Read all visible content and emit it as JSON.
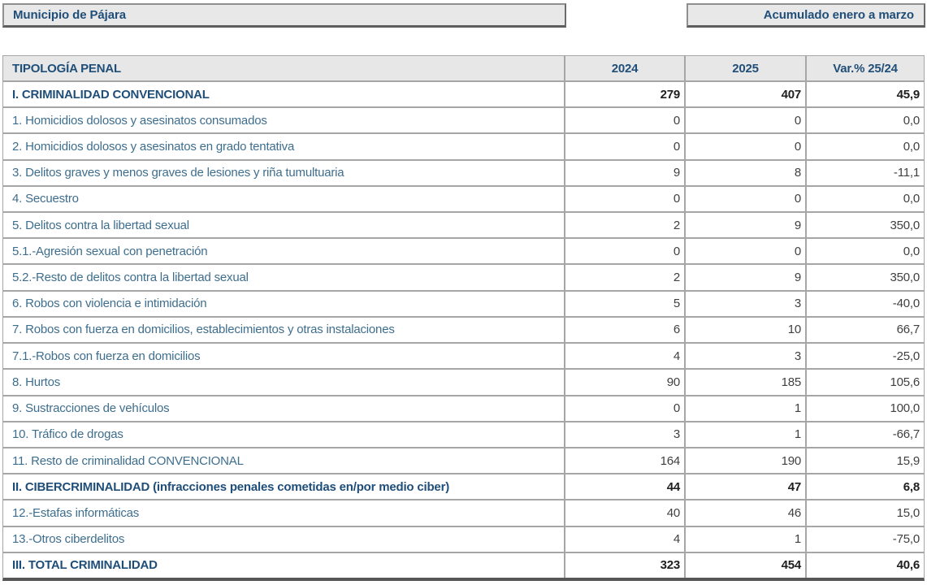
{
  "header": {
    "municipality_label": "Municipio de Pájara",
    "period_label": "Acumulado enero a marzo"
  },
  "colors": {
    "accent_navy": "#1f4e79",
    "label_steel_blue": "#3e6e8e",
    "grid_gray": "#a6a6a6",
    "header_bg": "#e8e7e7",
    "box_bg": "#e9e8e8"
  },
  "table": {
    "columns": [
      "TIPOLOGÍA PENAL",
      "2024",
      "2025",
      "Var.% 25/24"
    ],
    "rows": [
      {
        "label": "I. CRIMINALIDAD CONVENCIONAL",
        "y2024": "279",
        "y2025": "407",
        "var": "45,9"
      },
      {
        "label": "1. Homicidios dolosos y asesinatos consumados",
        "y2024": "0",
        "y2025": "0",
        "var": "0,0"
      },
      {
        "label": "2. Homicidios dolosos y asesinatos en grado tentativa",
        "y2024": "0",
        "y2025": "0",
        "var": "0,0"
      },
      {
        "label": "3. Delitos graves y menos graves de lesiones y riña tumultuaria",
        "y2024": "9",
        "y2025": "8",
        "var": "-11,1"
      },
      {
        "label": "4. Secuestro",
        "y2024": "0",
        "y2025": "0",
        "var": "0,0"
      },
      {
        "label": "5. Delitos contra la libertad sexual",
        "y2024": "2",
        "y2025": "9",
        "var": "350,0"
      },
      {
        "label": "5.1.-Agresión sexual con penetración",
        "y2024": "0",
        "y2025": "0",
        "var": "0,0"
      },
      {
        "label": "5.2.-Resto de delitos contra la libertad sexual",
        "y2024": "2",
        "y2025": "9",
        "var": "350,0"
      },
      {
        "label": "6. Robos con violencia e intimidación",
        "y2024": "5",
        "y2025": "3",
        "var": "-40,0"
      },
      {
        "label": "7. Robos con fuerza en domicilios, establecimientos y otras instalaciones",
        "y2024": "6",
        "y2025": "10",
        "var": "66,7"
      },
      {
        "label": "7.1.-Robos con fuerza en domicilios",
        "y2024": "4",
        "y2025": "3",
        "var": "-25,0"
      },
      {
        "label": "8. Hurtos",
        "y2024": "90",
        "y2025": "185",
        "var": "105,6"
      },
      {
        "label": "9. Sustracciones de vehículos",
        "y2024": "0",
        "y2025": "1",
        "var": "100,0"
      },
      {
        "label": "10. Tráfico de drogas",
        "y2024": "3",
        "y2025": "1",
        "var": "-66,7"
      },
      {
        "label": "11. Resto de criminalidad CONVENCIONAL",
        "y2024": "164",
        "y2025": "190",
        "var": "15,9"
      },
      {
        "label": "II. CIBERCRIMINALIDAD (infracciones penales cometidas en/por medio ciber)",
        "y2024": "44",
        "y2025": "47",
        "var": "6,8"
      },
      {
        "label": "12.-Estafas informáticas",
        "y2024": "40",
        "y2025": "46",
        "var": "15,0"
      },
      {
        "label": "13.-Otros ciberdelitos",
        "y2024": "4",
        "y2025": "1",
        "var": "-75,0"
      },
      {
        "label": "III. TOTAL CRIMINALIDAD",
        "y2024": "323",
        "y2025": "454",
        "var": "40,6"
      }
    ]
  },
  "chart_data": {
    "type": "table",
    "title": "Municipio de Pájara",
    "subtitle": "Acumulado enero a marzo",
    "columns": [
      "TIPOLOGÍA PENAL",
      "2024",
      "2025",
      "Var.% 25/24"
    ],
    "rows": [
      [
        "I. CRIMINALIDAD CONVENCIONAL",
        279,
        407,
        45.9
      ],
      [
        "1. Homicidios dolosos y asesinatos consumados",
        0,
        0,
        0.0
      ],
      [
        "2. Homicidios dolosos y asesinatos en grado tentativa",
        0,
        0,
        0.0
      ],
      [
        "3. Delitos graves y menos graves de lesiones y riña tumultuaria",
        9,
        8,
        -11.1
      ],
      [
        "4. Secuestro",
        0,
        0,
        0.0
      ],
      [
        "5. Delitos contra la libertad sexual",
        2,
        9,
        350.0
      ],
      [
        "5.1.-Agresión sexual con penetración",
        0,
        0,
        0.0
      ],
      [
        "5.2.-Resto de delitos contra la libertad sexual",
        2,
        9,
        350.0
      ],
      [
        "6. Robos con violencia e intimidación",
        5,
        3,
        -40.0
      ],
      [
        "7. Robos con fuerza en domicilios, establecimientos y otras instalaciones",
        6,
        10,
        66.7
      ],
      [
        "7.1.-Robos con fuerza en domicilios",
        4,
        3,
        -25.0
      ],
      [
        "8. Hurtos",
        90,
        185,
        105.6
      ],
      [
        "9. Sustracciones de vehículos",
        0,
        1,
        100.0
      ],
      [
        "10. Tráfico de drogas",
        3,
        1,
        -66.7
      ],
      [
        "11. Resto de criminalidad CONVENCIONAL",
        164,
        190,
        15.9
      ],
      [
        "II. CIBERCRIMINALIDAD (infracciones penales cometidas en/por medio ciber)",
        44,
        47,
        6.8
      ],
      [
        "12.-Estafas informáticas",
        40,
        46,
        15.0
      ],
      [
        "13.-Otros ciberdelitos",
        4,
        1,
        -75.0
      ],
      [
        "III. TOTAL CRIMINALIDAD",
        323,
        454,
        40.6
      ]
    ]
  }
}
